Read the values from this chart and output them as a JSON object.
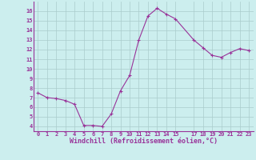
{
  "x": [
    0,
    1,
    2,
    3,
    4,
    5,
    6,
    7,
    8,
    9,
    10,
    11,
    12,
    13,
    14,
    15,
    17,
    18,
    19,
    20,
    21,
    22,
    23
  ],
  "y": [
    7.5,
    7.0,
    6.9,
    6.7,
    6.3,
    4.1,
    4.1,
    4.0,
    5.3,
    7.7,
    9.3,
    13.0,
    15.5,
    16.3,
    15.7,
    15.2,
    13.0,
    12.2,
    11.4,
    11.2,
    11.7,
    12.1,
    11.9
  ],
  "line_color": "#993399",
  "marker": "+",
  "marker_size": 3,
  "marker_color": "#993399",
  "background_color": "#cceeee",
  "grid_color": "#aacccc",
  "xlabel": "Windchill (Refroidissement éolien,°C)",
  "xlabel_color": "#993399",
  "tick_color": "#993399",
  "axis_color": "#993399",
  "ylim": [
    3.5,
    17.0
  ],
  "xlim": [
    -0.5,
    23.5
  ],
  "yticks": [
    4,
    5,
    6,
    7,
    8,
    9,
    10,
    11,
    12,
    13,
    14,
    15,
    16
  ],
  "xticks": [
    0,
    1,
    2,
    3,
    4,
    5,
    6,
    7,
    8,
    9,
    10,
    11,
    12,
    13,
    14,
    15,
    17,
    18,
    19,
    20,
    21,
    22,
    23
  ],
  "font_size_ticks": 5,
  "font_size_xlabel": 6,
  "line_width": 0.8
}
